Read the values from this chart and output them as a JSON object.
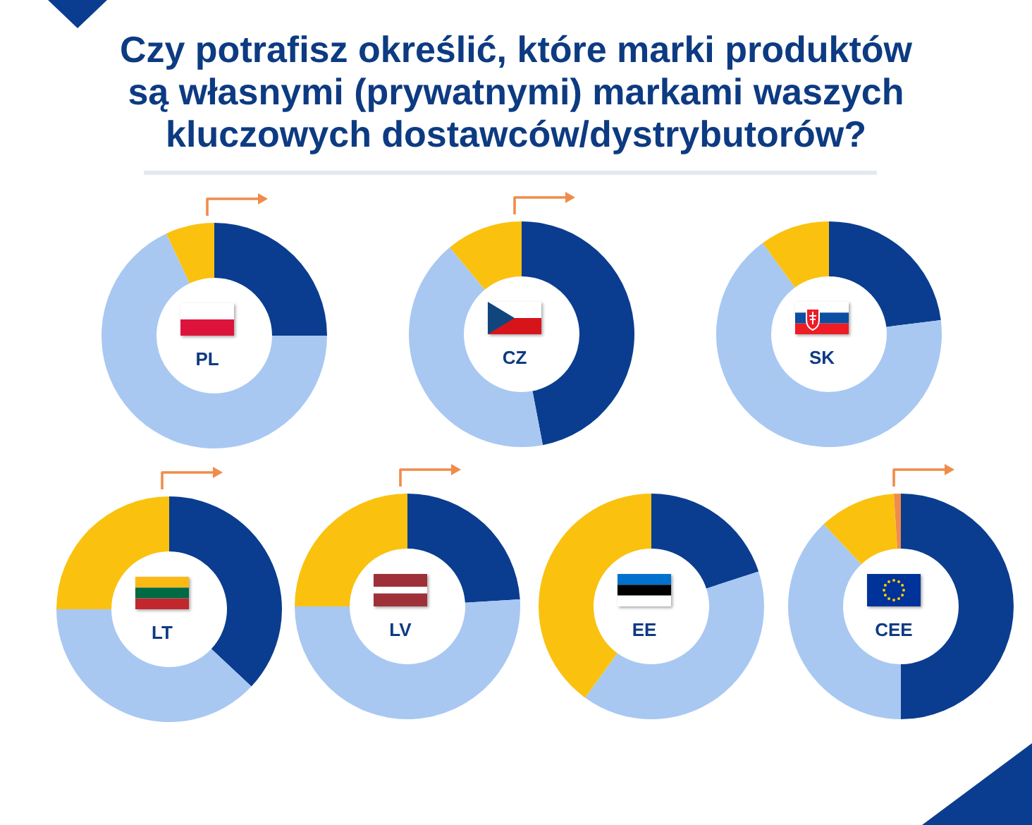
{
  "chart_data": [
    {
      "type": "donut",
      "title": "Czy potrafisz określić, które marki produktów są własnymi (prywatnymi) markami waszych kluczowych dostawców/dystrybutorów?",
      "annotations": [
        "PL"
      ],
      "categories": [
        null,
        null,
        null
      ],
      "values": [
        25,
        68,
        7
      ],
      "colors": [
        "#0a3d8f",
        "#a8c8f2",
        "#fac10f"
      ]
    },
    {
      "type": "donut",
      "annotations": [
        "CZ"
      ],
      "categories": [
        null,
        null,
        null
      ],
      "values": [
        47,
        42,
        11
      ],
      "colors": [
        "#0a3d8f",
        "#a8c8f2",
        "#fac10f"
      ]
    },
    {
      "type": "donut",
      "annotations": [
        "SK"
      ],
      "categories": [
        null,
        null,
        null
      ],
      "values": [
        23,
        67,
        10
      ],
      "colors": [
        "#0a3d8f",
        "#a8c8f2",
        "#fac10f"
      ]
    },
    {
      "type": "donut",
      "annotations": [
        "LT"
      ],
      "categories": [
        null,
        null,
        null
      ],
      "values": [
        37,
        38,
        25
      ],
      "colors": [
        "#0a3d8f",
        "#a8c8f2",
        "#fac10f"
      ]
    },
    {
      "type": "donut",
      "annotations": [
        "LV"
      ],
      "categories": [
        null,
        null,
        null
      ],
      "values": [
        24,
        51,
        25
      ],
      "colors": [
        "#0a3d8f",
        "#a8c8f2",
        "#fac10f"
      ]
    },
    {
      "type": "donut",
      "annotations": [
        "EE"
      ],
      "categories": [
        null,
        null,
        null
      ],
      "values": [
        20,
        40,
        40
      ],
      "colors": [
        "#0a3d8f",
        "#a8c8f2",
        "#fac10f"
      ]
    },
    {
      "type": "donut",
      "annotations": [
        "CEE"
      ],
      "categories": [
        null,
        null,
        null,
        null
      ],
      "values": [
        50,
        38,
        11,
        1
      ],
      "colors": [
        "#0a3d8f",
        "#a8c8f2",
        "#fac10f",
        "#f08c4a"
      ]
    }
  ]
}
